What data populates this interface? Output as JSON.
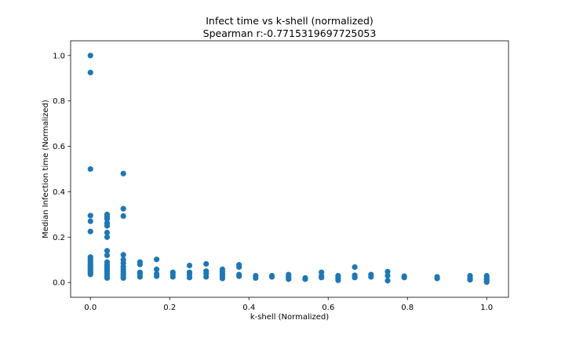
{
  "colors": {
    "marker": "#1f77b4",
    "axes": "#000000",
    "background": "#ffffff"
  },
  "chart_data": {
    "type": "scatter",
    "title": "Infect time vs k-shell (normalized)",
    "subtitle": "Spearman r:-0.7715319697725053",
    "xlabel": "k-shell (Normalized)",
    "ylabel": "Median Infection time (Normalized)",
    "xlim": [
      -0.05,
      1.055
    ],
    "ylim": [
      -0.065,
      1.065
    ],
    "xticks": [
      0.0,
      0.2,
      0.4,
      0.6,
      0.8,
      1.0
    ],
    "xtick_labels": [
      "0.0",
      "0.2",
      "0.4",
      "0.6",
      "0.8",
      "1.0"
    ],
    "yticks": [
      0.0,
      0.2,
      0.4,
      0.6,
      0.8,
      1.0
    ],
    "ytick_labels": [
      "0.0",
      "0.2",
      "0.4",
      "0.6",
      "0.8",
      "1.0"
    ],
    "grid": false,
    "legend": "none",
    "points": [
      [
        0.0,
        1.0
      ],
      [
        0.0,
        0.925
      ],
      [
        0.0,
        0.5
      ],
      [
        0.0,
        0.295
      ],
      [
        0.0,
        0.27
      ],
      [
        0.0,
        0.225
      ],
      [
        0.0,
        0.112
      ],
      [
        0.0,
        0.103
      ],
      [
        0.0,
        0.095
      ],
      [
        0.0,
        0.087
      ],
      [
        0.0,
        0.079
      ],
      [
        0.0,
        0.071
      ],
      [
        0.0,
        0.064
      ],
      [
        0.0,
        0.057
      ],
      [
        0.0,
        0.05
      ],
      [
        0.0,
        0.043
      ],
      [
        0.0,
        0.036
      ],
      [
        0.042,
        0.3
      ],
      [
        0.042,
        0.29
      ],
      [
        0.042,
        0.28
      ],
      [
        0.042,
        0.262
      ],
      [
        0.042,
        0.25
      ],
      [
        0.042,
        0.22
      ],
      [
        0.042,
        0.2
      ],
      [
        0.042,
        0.14
      ],
      [
        0.042,
        0.12
      ],
      [
        0.042,
        0.09
      ],
      [
        0.042,
        0.08
      ],
      [
        0.042,
        0.07
      ],
      [
        0.042,
        0.06
      ],
      [
        0.042,
        0.05
      ],
      [
        0.042,
        0.04
      ],
      [
        0.042,
        0.03
      ],
      [
        0.042,
        0.02
      ],
      [
        0.083,
        0.48
      ],
      [
        0.083,
        0.325
      ],
      [
        0.083,
        0.293
      ],
      [
        0.083,
        0.122
      ],
      [
        0.083,
        0.1
      ],
      [
        0.083,
        0.085
      ],
      [
        0.083,
        0.07
      ],
      [
        0.083,
        0.058
      ],
      [
        0.083,
        0.047
      ],
      [
        0.083,
        0.037
      ],
      [
        0.083,
        0.027
      ],
      [
        0.083,
        0.02
      ],
      [
        0.125,
        0.09
      ],
      [
        0.125,
        0.08
      ],
      [
        0.125,
        0.045
      ],
      [
        0.125,
        0.035
      ],
      [
        0.125,
        0.025
      ],
      [
        0.167,
        0.102
      ],
      [
        0.167,
        0.058
      ],
      [
        0.167,
        0.038
      ],
      [
        0.167,
        0.028
      ],
      [
        0.208,
        0.045
      ],
      [
        0.208,
        0.035
      ],
      [
        0.208,
        0.025
      ],
      [
        0.25,
        0.075
      ],
      [
        0.25,
        0.045
      ],
      [
        0.25,
        0.035
      ],
      [
        0.25,
        0.022
      ],
      [
        0.292,
        0.082
      ],
      [
        0.292,
        0.05
      ],
      [
        0.292,
        0.04
      ],
      [
        0.292,
        0.025
      ],
      [
        0.333,
        0.058
      ],
      [
        0.333,
        0.048
      ],
      [
        0.333,
        0.038
      ],
      [
        0.333,
        0.028
      ],
      [
        0.333,
        0.018
      ],
      [
        0.375,
        0.078
      ],
      [
        0.375,
        0.068
      ],
      [
        0.375,
        0.035
      ],
      [
        0.375,
        0.028
      ],
      [
        0.417,
        0.03
      ],
      [
        0.417,
        0.02
      ],
      [
        0.458,
        0.03
      ],
      [
        0.458,
        0.025
      ],
      [
        0.5,
        0.035
      ],
      [
        0.5,
        0.025
      ],
      [
        0.5,
        0.015
      ],
      [
        0.542,
        0.02
      ],
      [
        0.542,
        0.015
      ],
      [
        0.583,
        0.045
      ],
      [
        0.583,
        0.028
      ],
      [
        0.583,
        0.022
      ],
      [
        0.625,
        0.03
      ],
      [
        0.625,
        0.02
      ],
      [
        0.625,
        0.01
      ],
      [
        0.667,
        0.068
      ],
      [
        0.667,
        0.032
      ],
      [
        0.667,
        0.022
      ],
      [
        0.708,
        0.035
      ],
      [
        0.708,
        0.025
      ],
      [
        0.75,
        0.048
      ],
      [
        0.75,
        0.03
      ],
      [
        0.75,
        0.008
      ],
      [
        0.792,
        0.028
      ],
      [
        0.792,
        0.022
      ],
      [
        0.875,
        0.025
      ],
      [
        0.875,
        0.018
      ],
      [
        0.958,
        0.03
      ],
      [
        0.958,
        0.02
      ],
      [
        0.958,
        0.012
      ],
      [
        1.0,
        0.03
      ],
      [
        1.0,
        0.022
      ],
      [
        1.0,
        0.015
      ],
      [
        1.0,
        0.008
      ],
      [
        1.0,
        0.002
      ]
    ]
  }
}
